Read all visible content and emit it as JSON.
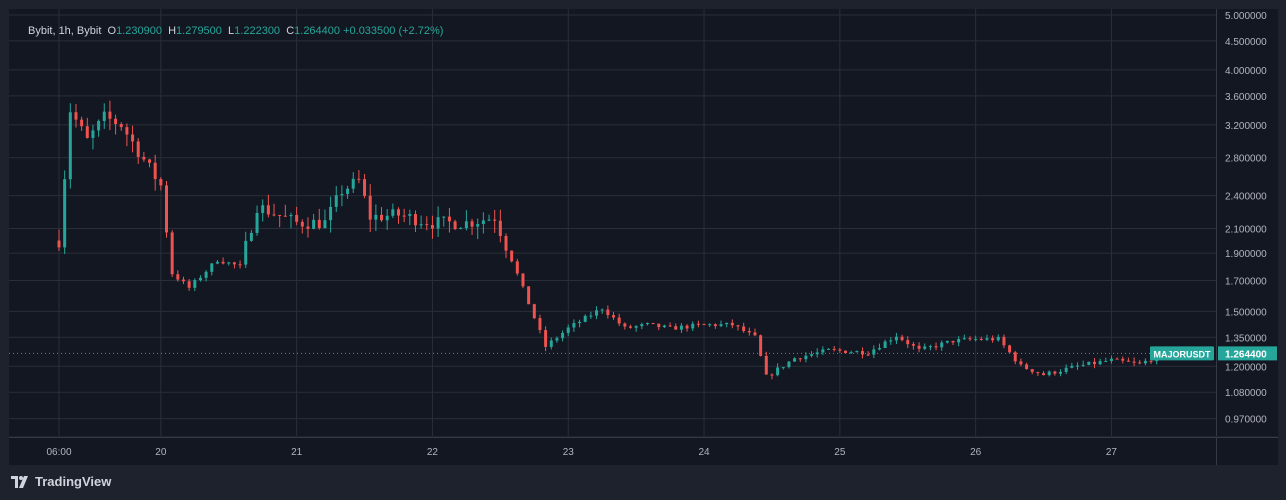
{
  "legend": {
    "source": "Bybit, 1h, Bybit",
    "o_label": "O",
    "o": "1.230900",
    "h_label": "H",
    "h": "1.279500",
    "l_label": "L",
    "l": "1.222300",
    "c_label": "C",
    "c": "1.264400",
    "change": "+0.033500 (+2.72%)"
  },
  "price_badge": {
    "symbol": "MAJORUSDT",
    "price": "1.264400",
    "color": "#26a69a"
  },
  "brand": {
    "name": "TradingView"
  },
  "colors": {
    "up": "#26a69a",
    "down": "#ef5350",
    "background": "#131722",
    "grid": "#2a2e39",
    "text": "#b2b5be"
  },
  "chart_data": {
    "type": "candlestick",
    "symbol": "MAJORUSDT",
    "interval": "1h",
    "y_scale": "log",
    "ylim": [
      0.93,
      5.0
    ],
    "y_ticks": [
      "5.000000",
      "4.500000",
      "4.000000",
      "3.600000",
      "3.200000",
      "2.800000",
      "2.400000",
      "2.100000",
      "1.900000",
      "1.700000",
      "1.500000",
      "1.350000",
      "1.200000",
      "1.080000",
      "0.970000"
    ],
    "x_ticks": [
      "06:00",
      "20",
      "21",
      "22",
      "23",
      "24",
      "25",
      "26",
      "27"
    ],
    "last_price": 1.2644,
    "series": [
      {
        "t": "06:00",
        "price": 2.0
      },
      {
        "t": "06:00+2h",
        "price": 3.4
      },
      {
        "t": "06:00+5h",
        "price": 3.0
      },
      {
        "t": "06:00+8h",
        "price": 3.3
      },
      {
        "t": "06:00+11h",
        "price": 3.2
      },
      {
        "t": "20",
        "price": 2.5
      },
      {
        "t": "20+2h",
        "price": 1.75
      },
      {
        "t": "20+5h",
        "price": 1.65
      },
      {
        "t": "20+10h",
        "price": 1.85
      },
      {
        "t": "20+14h",
        "price": 1.8
      },
      {
        "t": "20+17h",
        "price": 2.3
      },
      {
        "t": "21",
        "price": 2.15
      },
      {
        "t": "21+5h",
        "price": 2.15
      },
      {
        "t": "21+8h",
        "price": 2.45
      },
      {
        "t": "21+11h",
        "price": 2.55
      },
      {
        "t": "21+13h",
        "price": 2.2
      },
      {
        "t": "21+18h",
        "price": 2.22
      },
      {
        "t": "22",
        "price": 2.15
      },
      {
        "t": "22+6h",
        "price": 2.15
      },
      {
        "t": "22+11h",
        "price": 2.2
      },
      {
        "t": "22+14h",
        "price": 1.85
      },
      {
        "t": "22+17h",
        "price": 1.55
      },
      {
        "t": "22+20h",
        "price": 1.3
      },
      {
        "t": "23",
        "price": 1.4
      },
      {
        "t": "23+6h",
        "price": 1.52
      },
      {
        "t": "23+10h",
        "price": 1.4
      },
      {
        "t": "23+14h",
        "price": 1.42
      },
      {
        "t": "23+18h",
        "price": 1.4
      },
      {
        "t": "24",
        "price": 1.42
      },
      {
        "t": "24+5h",
        "price": 1.42
      },
      {
        "t": "24+9h",
        "price": 1.35
      },
      {
        "t": "24+11h",
        "price": 1.15
      },
      {
        "t": "24+16h",
        "price": 1.24
      },
      {
        "t": "24+22h",
        "price": 1.28
      },
      {
        "t": "25+5h",
        "price": 1.27
      },
      {
        "t": "25+10h",
        "price": 1.36
      },
      {
        "t": "25+14h",
        "price": 1.28
      },
      {
        "t": "25+20h",
        "price": 1.33
      },
      {
        "t": "26",
        "price": 1.34
      },
      {
        "t": "26+4h",
        "price": 1.34
      },
      {
        "t": "26+8h",
        "price": 1.2
      },
      {
        "t": "26+12h",
        "price": 1.16
      },
      {
        "t": "26+18h",
        "price": 1.2
      },
      {
        "t": "27",
        "price": 1.23
      },
      {
        "t": "27+5h",
        "price": 1.21
      },
      {
        "t": "27+9h",
        "price": 1.2644
      }
    ]
  }
}
